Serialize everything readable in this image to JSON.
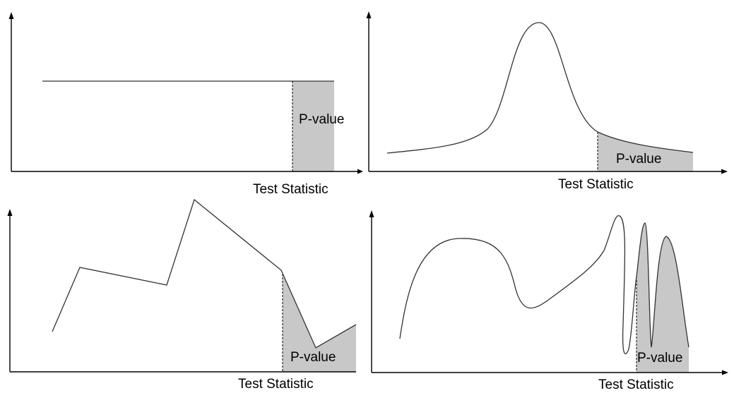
{
  "panels": [
    {
      "p_value_label": "P-value",
      "x_axis_label": "Test Statistic"
    },
    {
      "p_value_label": "P-value",
      "x_axis_label": "Test Statistic"
    },
    {
      "p_value_label": "P-value",
      "x_axis_label": "Test Statistic"
    },
    {
      "p_value_label": "P-value",
      "x_axis_label": "Test Statistic"
    }
  ]
}
